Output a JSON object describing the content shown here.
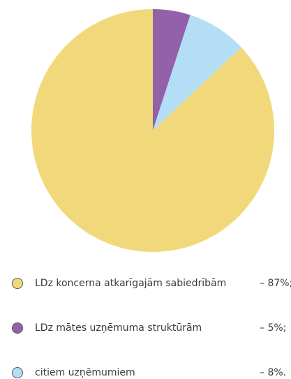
{
  "chart_data": {
    "type": "pie",
    "categories": [
      "LDz koncerna atkarīgajām sabiedrībām",
      "LDz mātes uzņēmuma struktūrām",
      "citiem uzņēmumiem"
    ],
    "values": [
      87,
      5,
      8
    ],
    "value_labels": [
      "– 87%;",
      "– 5%;",
      "– 8%."
    ],
    "colors": [
      "#f1d97b",
      "#9261a9",
      "#b3def5"
    ]
  }
}
